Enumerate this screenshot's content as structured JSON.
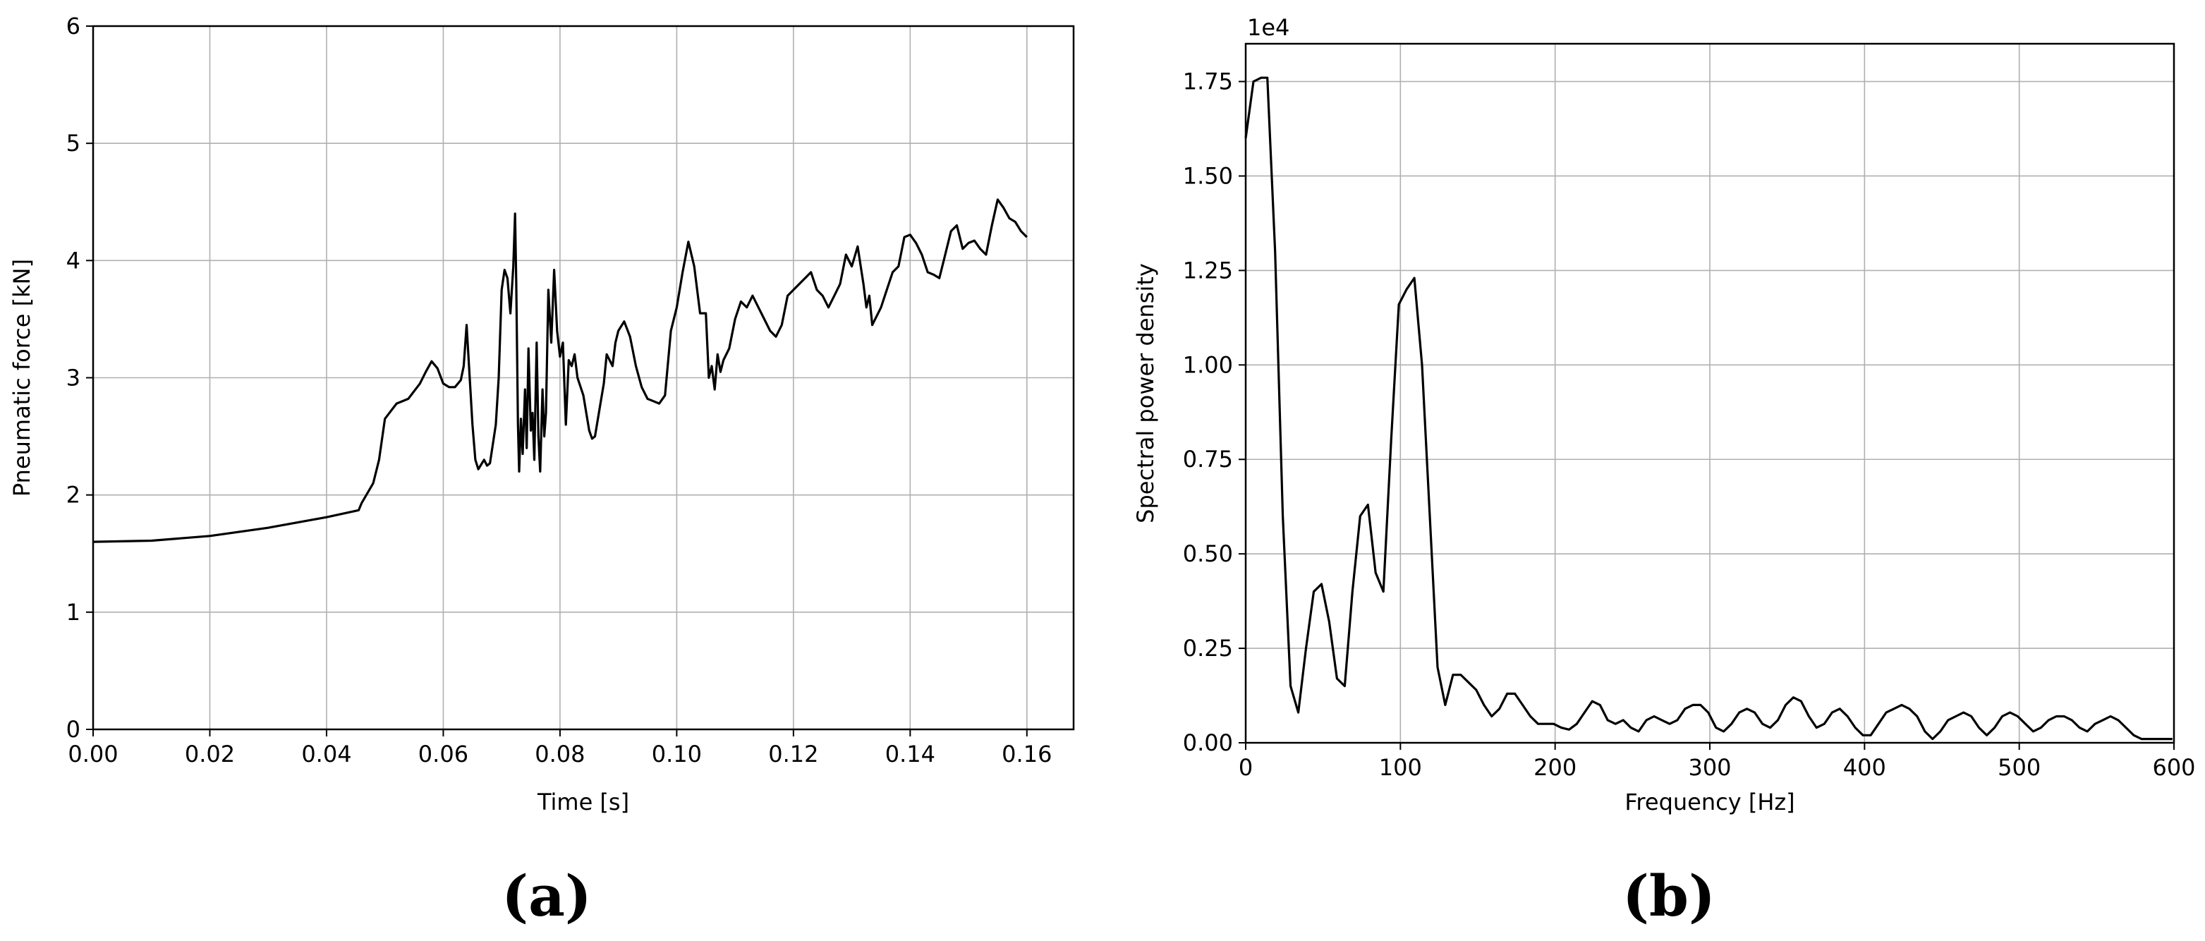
{
  "chart_data": [
    {
      "type": "line",
      "panel_label": "(a)",
      "xlabel": "Time [s]",
      "ylabel": "Pneumatic force [kN]",
      "xlim": [
        0,
        0.168
      ],
      "ylim": [
        0,
        6
      ],
      "xticks": [
        "0.00",
        "0.02",
        "0.04",
        "0.06",
        "0.08",
        "0.10",
        "0.12",
        "0.14",
        "0.16"
      ],
      "yticks": [
        "0",
        "1",
        "2",
        "3",
        "4",
        "5",
        "6"
      ],
      "grid": true,
      "series": [
        {
          "x": [
            0.0,
            0.01,
            0.02,
            0.03,
            0.04,
            0.0455,
            0.046,
            0.048,
            0.049,
            0.05,
            0.052,
            0.054,
            0.056,
            0.057,
            0.058,
            0.059,
            0.06,
            0.061,
            0.062,
            0.063,
            0.0635,
            0.064,
            0.065,
            0.0655,
            0.066,
            0.067,
            0.0675,
            0.068,
            0.069,
            0.0695,
            0.07,
            0.0705,
            0.071,
            0.0715,
            0.072,
            0.0723,
            0.0725,
            0.0728,
            0.073,
            0.0733,
            0.0736,
            0.074,
            0.0743,
            0.0746,
            0.075,
            0.0753,
            0.0756,
            0.076,
            0.0763,
            0.0766,
            0.077,
            0.0773,
            0.0776,
            0.078,
            0.0785,
            0.079,
            0.0795,
            0.08,
            0.0805,
            0.081,
            0.0815,
            0.082,
            0.0825,
            0.083,
            0.084,
            0.085,
            0.0855,
            0.086,
            0.087,
            0.0875,
            0.088,
            0.089,
            0.0895,
            0.09,
            0.091,
            0.092,
            0.093,
            0.094,
            0.095,
            0.096,
            0.097,
            0.098,
            0.099,
            0.1,
            0.101,
            0.102,
            0.103,
            0.104,
            0.105,
            0.1055,
            0.106,
            0.1065,
            0.107,
            0.1075,
            0.108,
            0.109,
            0.11,
            0.111,
            0.112,
            0.113,
            0.114,
            0.115,
            0.116,
            0.117,
            0.118,
            0.119,
            0.12,
            0.121,
            0.122,
            0.123,
            0.124,
            0.125,
            0.126,
            0.127,
            0.128,
            0.129,
            0.13,
            0.131,
            0.132,
            0.1325,
            0.133,
            0.1335,
            0.134,
            0.135,
            0.136,
            0.137,
            0.138,
            0.139,
            0.14,
            0.141,
            0.142,
            0.143,
            0.144,
            0.145,
            0.146,
            0.147,
            0.148,
            0.149,
            0.15,
            0.151,
            0.152,
            0.153,
            0.154,
            0.155,
            0.156,
            0.157,
            0.158,
            0.159,
            0.16
          ],
          "y": [
            1.6,
            1.61,
            1.65,
            1.72,
            1.81,
            1.87,
            1.93,
            2.1,
            2.3,
            2.65,
            2.78,
            2.82,
            2.95,
            3.05,
            3.14,
            3.08,
            2.95,
            2.92,
            2.92,
            2.98,
            3.1,
            3.45,
            2.6,
            2.3,
            2.22,
            2.3,
            2.25,
            2.27,
            2.6,
            3.0,
            3.75,
            3.92,
            3.85,
            3.55,
            3.95,
            4.4,
            3.8,
            2.6,
            2.2,
            2.65,
            2.35,
            2.9,
            2.4,
            3.25,
            2.55,
            2.7,
            2.3,
            3.3,
            2.5,
            2.2,
            2.9,
            2.5,
            2.7,
            3.75,
            3.3,
            3.92,
            3.4,
            3.18,
            3.3,
            2.6,
            3.15,
            3.1,
            3.2,
            3.0,
            2.85,
            2.55,
            2.48,
            2.5,
            2.8,
            2.95,
            3.2,
            3.1,
            3.3,
            3.4,
            3.48,
            3.35,
            3.1,
            2.92,
            2.82,
            2.8,
            2.78,
            2.85,
            3.4,
            3.6,
            3.9,
            4.16,
            3.95,
            3.55,
            3.55,
            3.0,
            3.1,
            2.9,
            3.2,
            3.05,
            3.15,
            3.25,
            3.5,
            3.65,
            3.6,
            3.7,
            3.6,
            3.5,
            3.4,
            3.35,
            3.45,
            3.7,
            3.75,
            3.8,
            3.85,
            3.9,
            3.75,
            3.7,
            3.6,
            3.7,
            3.8,
            4.05,
            3.95,
            4.12,
            3.8,
            3.6,
            3.7,
            3.45,
            3.5,
            3.6,
            3.75,
            3.9,
            3.95,
            4.2,
            4.22,
            4.15,
            4.05,
            3.9,
            3.88,
            3.85,
            4.05,
            4.25,
            4.3,
            4.1,
            4.15,
            4.17,
            4.1,
            4.05,
            4.3,
            4.52,
            4.45,
            4.36,
            4.33,
            4.25,
            4.2
          ]
        }
      ]
    },
    {
      "type": "line",
      "panel_label": "(b)",
      "xlabel": "Frequency [Hz]",
      "ylabel": "Spectral power density",
      "offset_text": "1e4",
      "xlim": [
        0,
        600
      ],
      "ylim": [
        0,
        1.85
      ],
      "xticks": [
        "0",
        "100",
        "200",
        "300",
        "400",
        "500",
        "600"
      ],
      "yticks": [
        "0.00",
        "0.25",
        "0.50",
        "0.75",
        "1.00",
        "1.25",
        "1.50",
        "1.75"
      ],
      "grid": true,
      "series": [
        {
          "x": [
            0,
            5,
            10,
            14,
            19,
            24,
            29,
            34,
            39,
            44,
            49,
            54,
            59,
            64,
            69,
            74,
            79,
            84,
            89,
            94,
            99,
            104,
            109,
            114,
            119,
            124,
            129,
            134,
            139,
            144,
            149,
            154,
            159,
            164,
            169,
            174,
            179,
            184,
            189,
            194,
            199,
            204,
            209,
            214,
            219,
            224,
            229,
            234,
            239,
            244,
            249,
            254,
            259,
            264,
            269,
            274,
            279,
            284,
            289,
            294,
            299,
            304,
            309,
            314,
            319,
            324,
            329,
            334,
            339,
            344,
            349,
            354,
            359,
            364,
            369,
            374,
            379,
            384,
            389,
            394,
            399,
            404,
            409,
            414,
            419,
            424,
            429,
            434,
            439,
            444,
            449,
            454,
            459,
            464,
            469,
            474,
            479,
            484,
            489,
            494,
            499,
            504,
            509,
            514,
            519,
            524,
            529,
            534,
            539,
            544,
            549,
            554,
            559,
            564,
            569,
            574,
            579,
            584,
            589,
            594,
            599
          ],
          "y": [
            1.6,
            1.75,
            1.76,
            1.76,
            1.3,
            0.6,
            0.15,
            0.08,
            0.25,
            0.4,
            0.42,
            0.32,
            0.17,
            0.15,
            0.4,
            0.6,
            0.63,
            0.45,
            0.4,
            0.8,
            1.16,
            1.2,
            1.23,
            1.0,
            0.6,
            0.2,
            0.1,
            0.18,
            0.18,
            0.16,
            0.14,
            0.1,
            0.07,
            0.09,
            0.13,
            0.13,
            0.1,
            0.07,
            0.05,
            0.05,
            0.05,
            0.04,
            0.035,
            0.05,
            0.08,
            0.11,
            0.1,
            0.06,
            0.05,
            0.06,
            0.04,
            0.03,
            0.06,
            0.07,
            0.06,
            0.05,
            0.06,
            0.09,
            0.1,
            0.1,
            0.08,
            0.04,
            0.03,
            0.05,
            0.08,
            0.09,
            0.08,
            0.05,
            0.04,
            0.06,
            0.1,
            0.12,
            0.11,
            0.07,
            0.04,
            0.05,
            0.08,
            0.09,
            0.07,
            0.04,
            0.02,
            0.02,
            0.05,
            0.08,
            0.09,
            0.1,
            0.09,
            0.07,
            0.03,
            0.01,
            0.03,
            0.06,
            0.07,
            0.08,
            0.07,
            0.04,
            0.02,
            0.04,
            0.07,
            0.08,
            0.07,
            0.05,
            0.03,
            0.04,
            0.06,
            0.07,
            0.07,
            0.06,
            0.04,
            0.03,
            0.05,
            0.06,
            0.07,
            0.06,
            0.04,
            0.02,
            0.01,
            0.01,
            0.01,
            0.01,
            0.01
          ]
        }
      ]
    }
  ]
}
